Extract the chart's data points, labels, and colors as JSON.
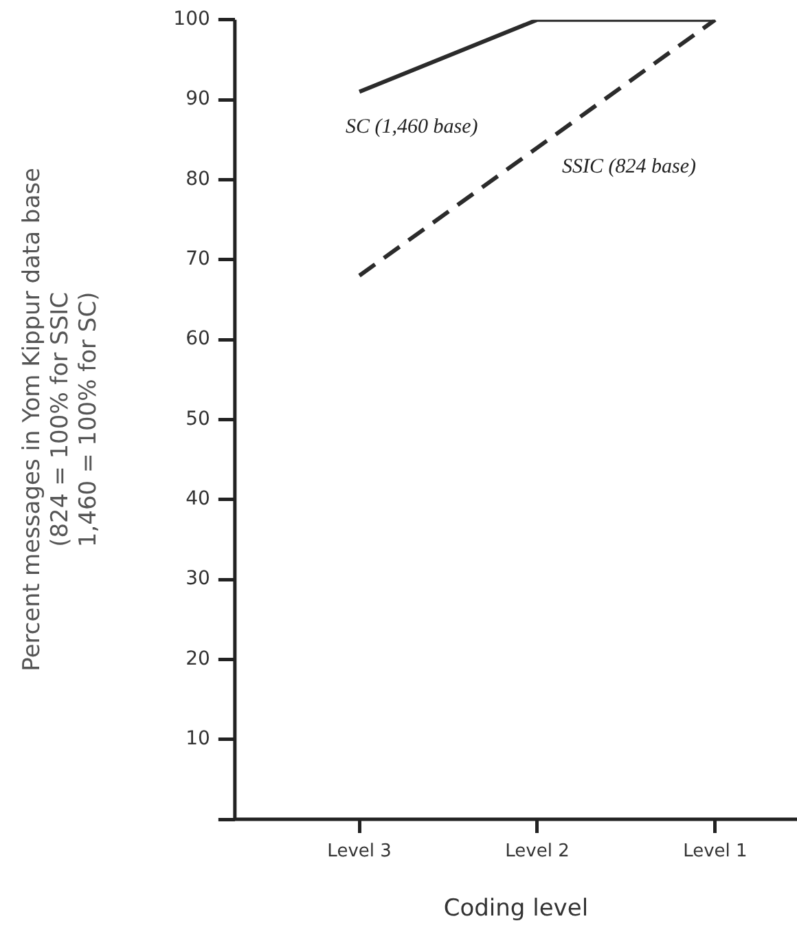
{
  "chart_data": {
    "type": "line",
    "xlabel": "Coding level",
    "ylabel": [
      "Percent messages in Yom Kippur data base",
      "(824 = 100% for SSIC",
      "1,460 = 100% for SC)"
    ],
    "categories": [
      "Level 3",
      "Level 2",
      "Level 1"
    ],
    "series": [
      {
        "name": "SC (1,460 base)",
        "color": "#2b2b2b",
        "line_style": "solid",
        "values": [
          91,
          100,
          100
        ]
      },
      {
        "name": "SSIC (824 base)",
        "color": "#2b2b2b",
        "line_style": "dashed",
        "values": [
          68,
          84,
          100
        ]
      }
    ],
    "ylim": [
      0,
      100
    ],
    "yticks": [
      {
        "value": 0,
        "label": null
      },
      10,
      20,
      30,
      40,
      50,
      60,
      70,
      80,
      90,
      100
    ],
    "grid": false,
    "legend": false,
    "marker": "none"
  }
}
